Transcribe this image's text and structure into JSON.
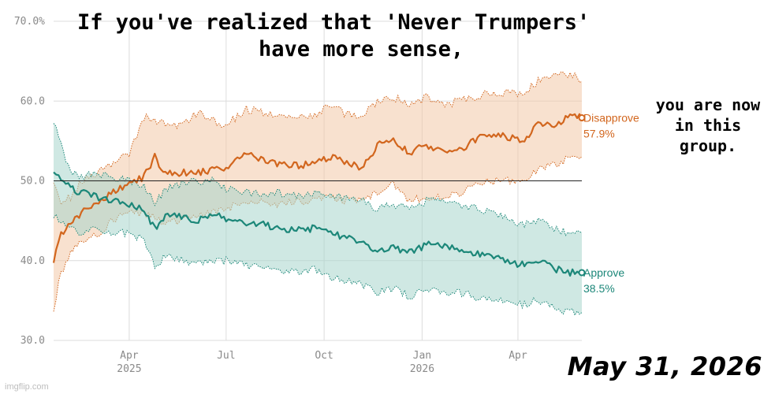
{
  "meme": {
    "caption_line1": "If you've realized that 'Never Trumpers'",
    "caption_line2": "have more sense,",
    "side_caption": "you are now in this group.",
    "date_stamp": "May 31, 2026",
    "watermark": "imgflip.com"
  },
  "chart_data": {
    "type": "line",
    "title": "",
    "xlabel": "",
    "ylabel": "",
    "ylim": [
      30,
      70
    ],
    "yticks": [
      "30.0",
      "40.0",
      "50.0",
      "60.0",
      "70.0%"
    ],
    "xticks": [
      {
        "label": "Apr",
        "sub": "2025",
        "date": "2025-04-01"
      },
      {
        "label": "Jul",
        "sub": "",
        "date": "2025-07-01"
      },
      {
        "label": "Oct",
        "sub": "",
        "date": "2025-10-01"
      },
      {
        "label": "Jan",
        "sub": "2026",
        "date": "2026-01-01"
      },
      {
        "label": "Apr",
        "sub": "",
        "date": "2026-04-01"
      }
    ],
    "xlim": [
      "2025-01-20",
      "2026-05-31"
    ],
    "reference_line": 50,
    "grid": true,
    "series": [
      {
        "name": "Disapprove",
        "color": "#d2661e",
        "band_color": "#f3c9a8",
        "final_label": "57.9%",
        "dates": [
          "2025-01-20",
          "2025-01-27",
          "2025-02-05",
          "2025-02-15",
          "2025-03-01",
          "2025-03-15",
          "2025-04-01",
          "2025-04-15",
          "2025-04-25",
          "2025-05-05",
          "2025-05-20",
          "2025-06-05",
          "2025-06-20",
          "2025-07-01",
          "2025-07-20",
          "2025-08-05",
          "2025-08-20",
          "2025-09-05",
          "2025-09-20",
          "2025-10-05",
          "2025-10-20",
          "2025-11-05",
          "2025-11-20",
          "2025-12-05",
          "2025-12-20",
          "2026-01-05",
          "2026-01-20",
          "2026-02-05",
          "2026-02-20",
          "2026-03-05",
          "2026-03-20",
          "2026-04-05",
          "2026-04-20",
          "2026-05-05",
          "2026-05-20",
          "2026-05-31"
        ],
        "values": [
          40.0,
          43.5,
          44.5,
          46.0,
          47.0,
          48.5,
          49.5,
          50.5,
          53.0,
          51.0,
          51.0,
          51.0,
          51.5,
          51.5,
          53.5,
          52.5,
          52.0,
          52.0,
          52.0,
          53.0,
          52.5,
          51.5,
          54.5,
          55.0,
          53.5,
          54.5,
          53.5,
          54.0,
          55.0,
          56.0,
          55.5,
          55.0,
          57.0,
          57.0,
          58.2,
          57.9
        ],
        "upper": [
          50.0,
          47.5,
          48.0,
          50.0,
          51.0,
          52.0,
          53.5,
          58.0,
          57.5,
          57.0,
          57.0,
          58.5,
          57.5,
          57.0,
          59.0,
          58.5,
          58.0,
          58.0,
          58.0,
          59.5,
          58.5,
          58.0,
          60.0,
          60.5,
          59.5,
          60.5,
          59.5,
          60.0,
          60.5,
          61.0,
          61.0,
          61.0,
          62.5,
          63.0,
          63.5,
          62.5
        ],
        "lower": [
          34.0,
          38.5,
          41.0,
          42.5,
          43.0,
          45.0,
          46.0,
          46.0,
          45.5,
          44.5,
          45.0,
          45.5,
          46.0,
          46.5,
          47.5,
          47.5,
          47.0,
          47.5,
          47.5,
          48.0,
          47.5,
          47.5,
          48.5,
          49.5,
          47.5,
          48.0,
          48.0,
          48.5,
          49.5,
          50.0,
          50.0,
          50.0,
          51.5,
          52.0,
          53.0,
          53.0
        ]
      },
      {
        "name": "Approve",
        "color": "#1c8779",
        "band_color": "#a8d5cc",
        "final_label": "38.5%",
        "dates": [
          "2025-01-20",
          "2025-01-27",
          "2025-02-05",
          "2025-02-15",
          "2025-03-01",
          "2025-03-15",
          "2025-04-01",
          "2025-04-15",
          "2025-04-25",
          "2025-05-05",
          "2025-05-20",
          "2025-06-05",
          "2025-06-20",
          "2025-07-01",
          "2025-07-20",
          "2025-08-05",
          "2025-08-20",
          "2025-09-05",
          "2025-09-20",
          "2025-10-05",
          "2025-10-20",
          "2025-11-05",
          "2025-11-20",
          "2025-12-05",
          "2025-12-20",
          "2026-01-05",
          "2026-01-20",
          "2026-02-05",
          "2026-02-20",
          "2026-03-05",
          "2026-03-20",
          "2026-04-05",
          "2026-04-20",
          "2026-05-05",
          "2026-05-20",
          "2026-05-31"
        ],
        "values": [
          51.5,
          50.5,
          49.0,
          48.5,
          48.0,
          47.5,
          47.0,
          46.5,
          44.0,
          45.5,
          45.5,
          45.0,
          46.0,
          45.0,
          44.5,
          44.5,
          44.0,
          44.0,
          44.0,
          43.5,
          43.0,
          42.5,
          41.0,
          41.5,
          41.0,
          42.0,
          42.0,
          41.5,
          41.0,
          40.5,
          40.0,
          39.5,
          40.0,
          39.0,
          38.5,
          38.5
        ],
        "upper": [
          57.5,
          54.5,
          51.0,
          50.5,
          51.0,
          50.5,
          50.0,
          49.5,
          47.0,
          49.0,
          49.5,
          50.0,
          50.0,
          49.0,
          48.5,
          48.5,
          48.5,
          48.0,
          48.5,
          48.0,
          48.0,
          47.5,
          46.5,
          47.0,
          46.5,
          47.5,
          47.5,
          47.0,
          46.5,
          46.0,
          45.5,
          44.5,
          45.0,
          44.0,
          43.5,
          43.5
        ],
        "lower": [
          45.5,
          45.0,
          44.0,
          43.5,
          44.0,
          43.5,
          43.5,
          42.5,
          39.5,
          40.5,
          40.0,
          39.5,
          40.0,
          40.0,
          39.5,
          39.0,
          38.5,
          38.5,
          39.0,
          38.0,
          37.5,
          37.0,
          36.0,
          36.5,
          35.5,
          36.5,
          36.0,
          36.0,
          35.5,
          35.0,
          35.0,
          34.5,
          35.0,
          34.0,
          33.5,
          33.5
        ]
      }
    ]
  }
}
